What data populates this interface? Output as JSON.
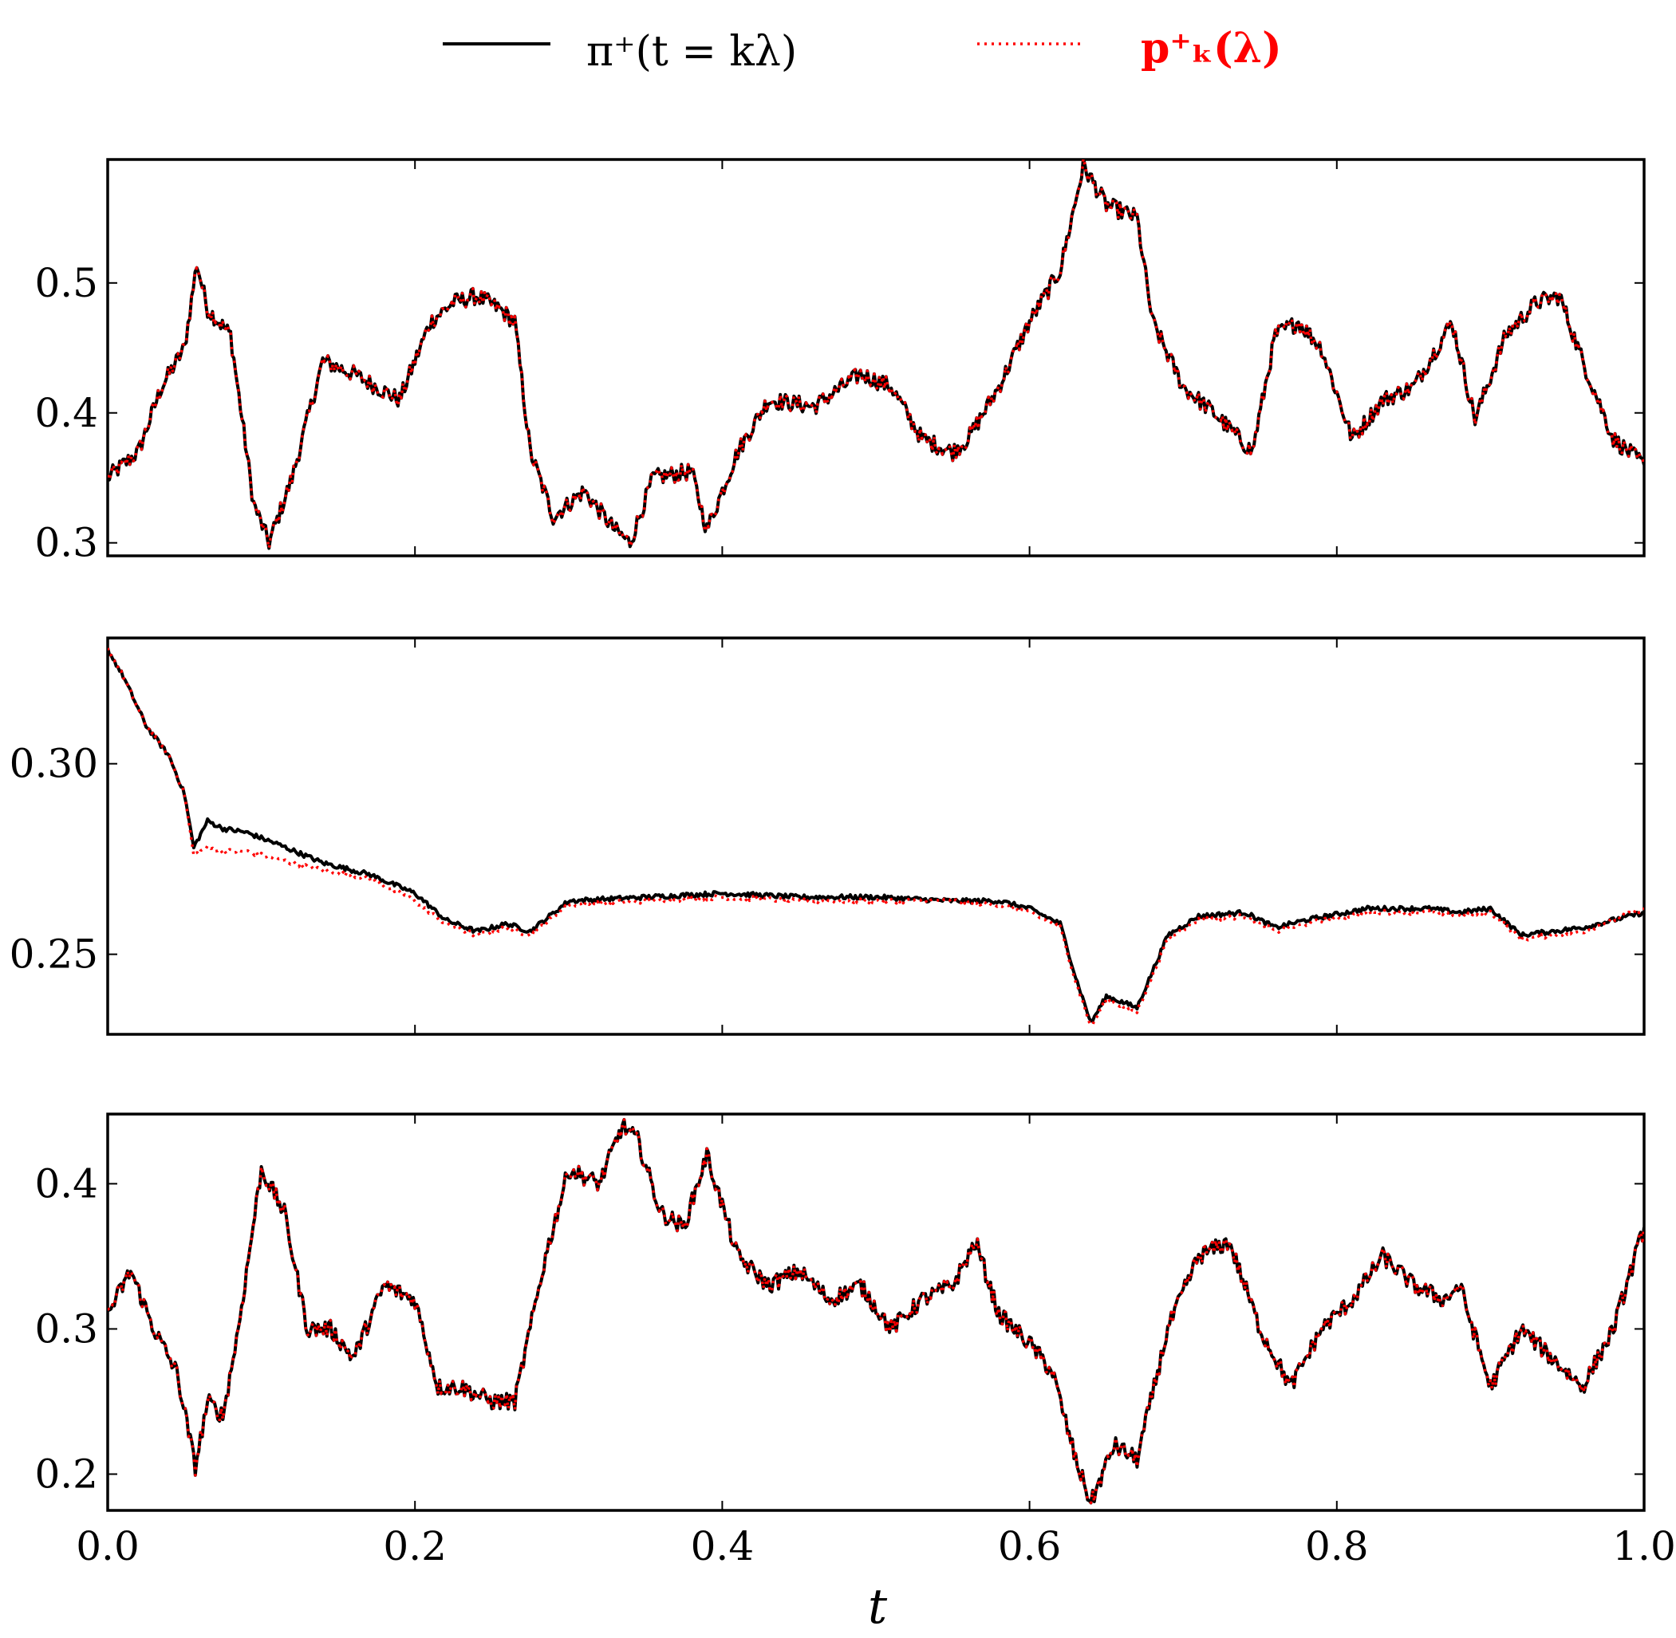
{
  "chart_data": {
    "type": "line",
    "xlabel": "t",
    "xlim": [
      0.0,
      1.0
    ],
    "x_ticks": [
      "0.0",
      "0.2",
      "0.4",
      "0.6",
      "0.8",
      "1.0"
    ],
    "legend": {
      "placement": "top-center",
      "entries": [
        {
          "label": "π⁺(t = kλ)",
          "color": "#000000",
          "style": "solid"
        },
        {
          "label": "p⁺ₖ(λ)",
          "color": "#ff0000",
          "style": "dotted"
        }
      ]
    },
    "panels": [
      {
        "ylim": [
          0.29,
          0.595
        ],
        "y_ticks": [
          {
            "value": 0.3,
            "label": "0.3"
          },
          {
            "value": 0.4,
            "label": "0.4"
          },
          {
            "value": 0.5,
            "label": "0.5"
          }
        ],
        "x": [
          0,
          0.02,
          0.035,
          0.05,
          0.058,
          0.065,
          0.08,
          0.095,
          0.105,
          0.12,
          0.14,
          0.16,
          0.175,
          0.19,
          0.21,
          0.225,
          0.24,
          0.255,
          0.265,
          0.275,
          0.29,
          0.31,
          0.33,
          0.34,
          0.355,
          0.38,
          0.39,
          0.41,
          0.43,
          0.46,
          0.49,
          0.51,
          0.53,
          0.55,
          0.56,
          0.58,
          0.6,
          0.62,
          0.635,
          0.65,
          0.67,
          0.68,
          0.7,
          0.72,
          0.745,
          0.76,
          0.775,
          0.79,
          0.81,
          0.83,
          0.85,
          0.875,
          0.89,
          0.91,
          0.93,
          0.945,
          0.96,
          0.98,
          1.0
        ],
        "series": [
          {
            "name": "π⁺(t = kλ)",
            "values": [
              0.35,
              0.37,
              0.42,
              0.45,
              0.515,
              0.48,
              0.46,
              0.33,
              0.3,
              0.35,
              0.44,
              0.43,
              0.42,
              0.41,
              0.47,
              0.485,
              0.49,
              0.48,
              0.47,
              0.37,
              0.32,
              0.34,
              0.31,
              0.3,
              0.35,
              0.355,
              0.31,
              0.37,
              0.41,
              0.405,
              0.43,
              0.42,
              0.38,
              0.37,
              0.38,
              0.42,
              0.47,
              0.51,
              0.59,
              0.56,
              0.55,
              0.47,
              0.42,
              0.4,
              0.37,
              0.46,
              0.47,
              0.45,
              0.38,
              0.41,
              0.42,
              0.47,
              0.395,
              0.46,
              0.485,
              0.49,
              0.44,
              0.38,
              0.36
            ]
          },
          {
            "name": "p⁺ₖ(λ)",
            "values": [
              0.35,
              0.37,
              0.42,
              0.45,
              0.515,
              0.48,
              0.46,
              0.33,
              0.3,
              0.35,
              0.44,
              0.43,
              0.42,
              0.41,
              0.47,
              0.485,
              0.49,
              0.48,
              0.47,
              0.37,
              0.32,
              0.34,
              0.31,
              0.3,
              0.35,
              0.355,
              0.31,
              0.37,
              0.41,
              0.405,
              0.43,
              0.42,
              0.38,
              0.37,
              0.38,
              0.42,
              0.47,
              0.51,
              0.59,
              0.56,
              0.55,
              0.47,
              0.42,
              0.4,
              0.37,
              0.46,
              0.47,
              0.45,
              0.38,
              0.41,
              0.42,
              0.47,
              0.395,
              0.46,
              0.485,
              0.49,
              0.44,
              0.38,
              0.36
            ]
          }
        ]
      },
      {
        "ylim": [
          0.229,
          0.333
        ],
        "y_ticks": [
          {
            "value": 0.25,
            "label": "0.25"
          },
          {
            "value": 0.3,
            "label": "0.30"
          }
        ],
        "x": [
          0,
          0.01,
          0.025,
          0.04,
          0.05,
          0.056,
          0.065,
          0.075,
          0.09,
          0.11,
          0.14,
          0.17,
          0.2,
          0.22,
          0.24,
          0.26,
          0.275,
          0.3,
          0.35,
          0.4,
          0.45,
          0.5,
          0.55,
          0.58,
          0.6,
          0.62,
          0.63,
          0.64,
          0.65,
          0.67,
          0.69,
          0.71,
          0.74,
          0.76,
          0.78,
          0.82,
          0.86,
          0.88,
          0.9,
          0.92,
          0.96,
          1.0
        ],
        "series": [
          {
            "name": "π⁺(t = kλ)",
            "values": [
              0.33,
              0.323,
              0.31,
              0.302,
              0.292,
              0.278,
              0.285,
              0.283,
              0.282,
              0.279,
              0.274,
              0.271,
              0.266,
              0.259,
              0.256,
              0.258,
              0.256,
              0.264,
              0.265,
              0.266,
              0.265,
              0.265,
              0.264,
              0.264,
              0.262,
              0.258,
              0.244,
              0.232,
              0.239,
              0.236,
              0.255,
              0.26,
              0.261,
              0.257,
              0.259,
              0.262,
              0.262,
              0.261,
              0.262,
              0.255,
              0.257,
              0.261
            ]
          },
          {
            "name": "p⁺ₖ(λ)",
            "values": [
              0.33,
              0.323,
              0.31,
              0.302,
              0.292,
              0.276,
              0.278,
              0.277,
              0.277,
              0.275,
              0.272,
              0.27,
              0.264,
              0.258,
              0.255,
              0.257,
              0.255,
              0.263,
              0.264,
              0.265,
              0.264,
              0.264,
              0.264,
              0.263,
              0.261,
              0.257,
              0.243,
              0.231,
              0.238,
              0.235,
              0.254,
              0.259,
              0.26,
              0.256,
              0.258,
              0.261,
              0.261,
              0.26,
              0.261,
              0.254,
              0.256,
              0.262
            ]
          }
        ]
      },
      {
        "ylim": [
          0.175,
          0.448
        ],
        "y_ticks": [
          {
            "value": 0.2,
            "label": "0.2"
          },
          {
            "value": 0.3,
            "label": "0.3"
          },
          {
            "value": 0.4,
            "label": "0.4"
          }
        ],
        "x": [
          0,
          0.015,
          0.03,
          0.045,
          0.057,
          0.065,
          0.075,
          0.085,
          0.1,
          0.115,
          0.13,
          0.145,
          0.16,
          0.18,
          0.2,
          0.215,
          0.23,
          0.25,
          0.265,
          0.285,
          0.3,
          0.32,
          0.335,
          0.345,
          0.36,
          0.375,
          0.39,
          0.41,
          0.43,
          0.45,
          0.47,
          0.49,
          0.51,
          0.53,
          0.55,
          0.565,
          0.58,
          0.6,
          0.615,
          0.63,
          0.64,
          0.655,
          0.67,
          0.69,
          0.71,
          0.73,
          0.75,
          0.77,
          0.79,
          0.81,
          0.83,
          0.85,
          0.87,
          0.88,
          0.9,
          0.92,
          0.94,
          0.96,
          0.98,
          1.0
        ],
        "series": [
          {
            "name": "π⁺(t = kλ)",
            "values": [
              0.31,
              0.34,
              0.3,
              0.27,
              0.205,
              0.25,
              0.24,
              0.3,
              0.41,
              0.38,
              0.3,
              0.3,
              0.28,
              0.33,
              0.32,
              0.26,
              0.26,
              0.25,
              0.25,
              0.35,
              0.41,
              0.4,
              0.44,
              0.43,
              0.38,
              0.37,
              0.42,
              0.35,
              0.33,
              0.34,
              0.32,
              0.33,
              0.3,
              0.32,
              0.33,
              0.36,
              0.31,
              0.29,
              0.27,
              0.21,
              0.18,
              0.22,
              0.21,
              0.3,
              0.35,
              0.36,
              0.3,
              0.26,
              0.3,
              0.32,
              0.35,
              0.33,
              0.32,
              0.33,
              0.26,
              0.3,
              0.28,
              0.26,
              0.3,
              0.37
            ]
          },
          {
            "name": "p⁺ₖ(λ)",
            "values": [
              0.31,
              0.34,
              0.3,
              0.27,
              0.205,
              0.25,
              0.24,
              0.3,
              0.41,
              0.38,
              0.3,
              0.3,
              0.28,
              0.33,
              0.32,
              0.26,
              0.26,
              0.25,
              0.25,
              0.35,
              0.41,
              0.4,
              0.44,
              0.43,
              0.38,
              0.37,
              0.42,
              0.35,
              0.33,
              0.34,
              0.32,
              0.33,
              0.3,
              0.32,
              0.33,
              0.36,
              0.31,
              0.29,
              0.27,
              0.21,
              0.18,
              0.22,
              0.21,
              0.3,
              0.35,
              0.36,
              0.3,
              0.26,
              0.3,
              0.32,
              0.35,
              0.33,
              0.32,
              0.33,
              0.26,
              0.3,
              0.28,
              0.26,
              0.3,
              0.37
            ]
          }
        ]
      }
    ]
  }
}
